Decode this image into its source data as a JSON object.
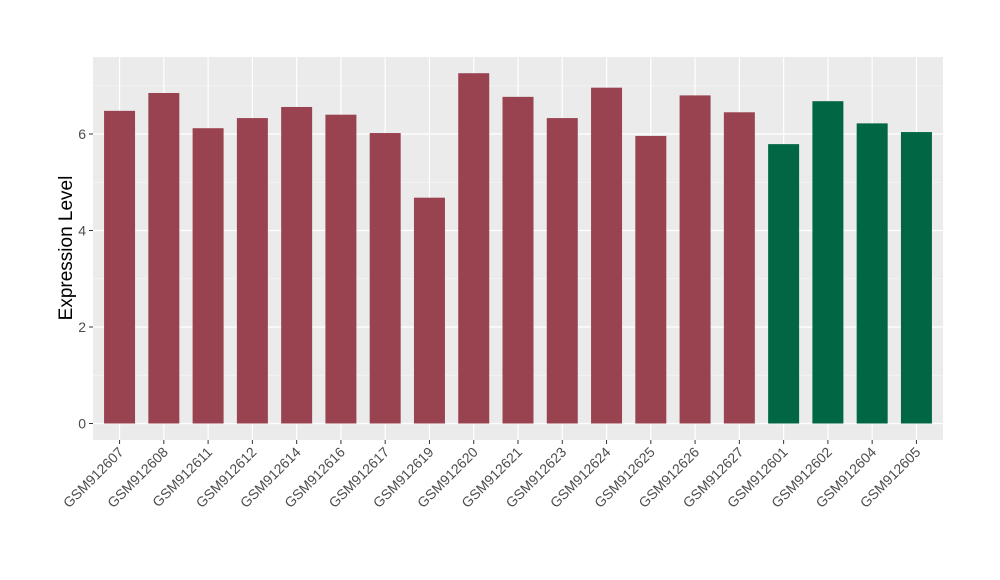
{
  "chart_data": {
    "type": "bar",
    "title": "",
    "xlabel": "",
    "ylabel": "Expression Level",
    "ylim": [
      0,
      7.5
    ],
    "yticks": [
      0,
      2,
      4,
      6
    ],
    "grid": true,
    "panel_background": "#ebebeb",
    "categories": [
      "GSM912607",
      "GSM912608",
      "GSM912611",
      "GSM912612",
      "GSM912614",
      "GSM912616",
      "GSM912617",
      "GSM912619",
      "GSM912620",
      "GSM912621",
      "GSM912623",
      "GSM912624",
      "GSM912625",
      "GSM912626",
      "GSM912627",
      "GSM912601",
      "GSM912602",
      "GSM912604",
      "GSM912605"
    ],
    "values": [
      6.48,
      6.85,
      6.12,
      6.33,
      6.56,
      6.4,
      6.02,
      4.68,
      7.26,
      6.77,
      6.33,
      6.96,
      5.96,
      6.8,
      6.45,
      5.79,
      6.68,
      6.22,
      6.04
    ],
    "groups": [
      "a",
      "a",
      "a",
      "a",
      "a",
      "a",
      "a",
      "a",
      "a",
      "a",
      "a",
      "a",
      "a",
      "a",
      "a",
      "b",
      "b",
      "b",
      "b"
    ],
    "colors": {
      "a": "#9a4350",
      "b": "#006644"
    }
  }
}
